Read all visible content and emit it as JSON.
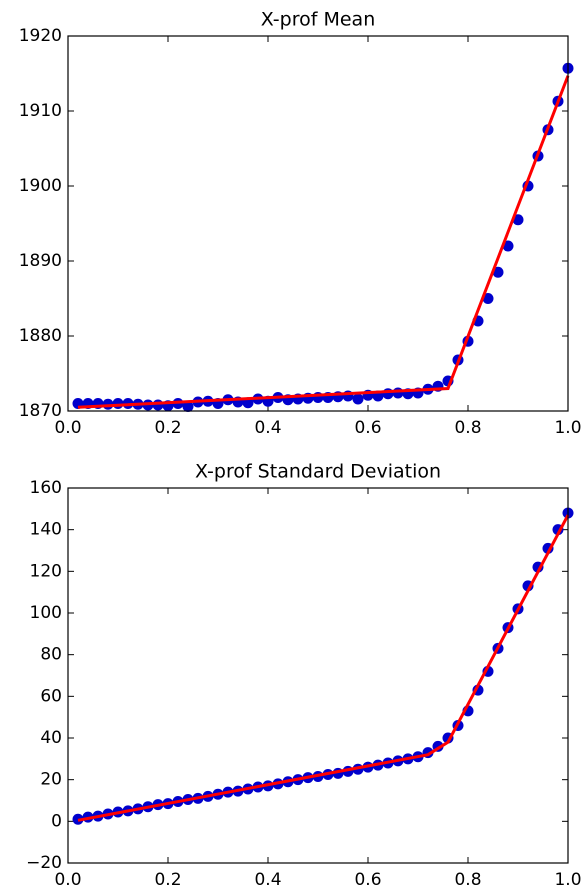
{
  "chart_data": [
    {
      "type": "scatter",
      "title": "X-prof Mean",
      "xlim": [
        0,
        1
      ],
      "xticks": [
        {
          "value": 0,
          "label": "0.0"
        },
        0.2,
        0.4,
        0.6,
        0.8,
        {
          "value": 1,
          "label": "1.0"
        }
      ],
      "ylim": [
        1870,
        1920
      ],
      "yticks": [
        1870,
        1880,
        1890,
        1900,
        1910,
        1920
      ],
      "series": [
        {
          "style": "markers",
          "color": "#0000cc",
          "x": [
            0.02,
            0.04,
            0.06,
            0.08,
            0.1,
            0.12,
            0.14,
            0.16,
            0.18,
            0.2,
            0.22,
            0.24,
            0.26,
            0.28,
            0.3,
            0.32,
            0.34,
            0.36,
            0.38,
            0.4,
            0.42,
            0.44,
            0.46,
            0.48,
            0.5,
            0.52,
            0.54,
            0.56,
            0.58,
            0.6,
            0.62,
            0.64,
            0.66,
            0.68,
            0.7,
            0.72,
            0.74,
            0.76,
            0.78,
            0.8,
            0.82,
            0.84,
            0.86,
            0.88,
            0.9,
            0.92,
            0.94,
            0.96,
            0.98,
            1.0
          ],
          "values": [
            1871,
            1871,
            1871,
            1870.9,
            1871,
            1871,
            1870.9,
            1870.8,
            1870.8,
            1870.7,
            1871,
            1870.6,
            1871.2,
            1871.3,
            1871,
            1871.5,
            1871.2,
            1871.1,
            1871.6,
            1871.3,
            1871.8,
            1871.5,
            1871.6,
            1871.7,
            1871.8,
            1871.8,
            1871.9,
            1872,
            1871.6,
            1872.1,
            1872,
            1872.3,
            1872.4,
            1872.3,
            1872.4,
            1872.9,
            1873.3,
            1874,
            1876.8,
            1879.3,
            1882,
            1885,
            1888.5,
            1892,
            1895.5,
            1900,
            1904,
            1907.5,
            1911.3,
            1915.7
          ]
        },
        {
          "style": "line",
          "color": "#ff0000",
          "x": [
            0.02,
            0.76,
            1.0
          ],
          "values": [
            1870.5,
            1873.0,
            1914.7
          ]
        }
      ]
    },
    {
      "type": "scatter",
      "title": "X-prof Standard Deviation",
      "xlim": [
        0,
        1
      ],
      "xticks": [
        {
          "value": 0,
          "label": "0.0"
        },
        0.2,
        0.4,
        0.6,
        0.8,
        {
          "value": 1,
          "label": "1.0"
        }
      ],
      "ylim": [
        -20,
        160
      ],
      "yticks": [
        {
          "value": -20,
          "label": "−20"
        },
        0,
        20,
        40,
        60,
        80,
        100,
        120,
        140,
        160
      ],
      "series": [
        {
          "style": "markers",
          "color": "#0000cc",
          "x": [
            0.02,
            0.04,
            0.06,
            0.08,
            0.1,
            0.12,
            0.14,
            0.16,
            0.18,
            0.2,
            0.22,
            0.24,
            0.26,
            0.28,
            0.3,
            0.32,
            0.34,
            0.36,
            0.38,
            0.4,
            0.42,
            0.44,
            0.46,
            0.48,
            0.5,
            0.52,
            0.54,
            0.56,
            0.58,
            0.6,
            0.62,
            0.64,
            0.66,
            0.68,
            0.7,
            0.72,
            0.74,
            0.76,
            0.78,
            0.8,
            0.82,
            0.84,
            0.86,
            0.88,
            0.9,
            0.92,
            0.94,
            0.96,
            0.98,
            1.0
          ],
          "values": [
            1,
            2,
            2.5,
            3.5,
            4.5,
            5,
            6,
            7,
            8,
            8.5,
            9.5,
            10.5,
            11,
            12,
            13,
            14,
            14.5,
            15.5,
            16.5,
            17,
            18,
            19,
            20,
            21,
            21.5,
            22.5,
            23,
            24,
            25,
            26,
            27,
            28,
            29,
            30,
            31,
            33,
            36,
            40,
            46,
            53,
            63,
            72,
            83,
            93,
            102,
            113,
            122,
            131,
            140,
            148
          ]
        },
        {
          "style": "line",
          "color": "#ff0000",
          "x": [
            0.02,
            0.72,
            0.76,
            1.0
          ],
          "values": [
            0.5,
            32,
            38,
            147
          ]
        }
      ]
    }
  ]
}
